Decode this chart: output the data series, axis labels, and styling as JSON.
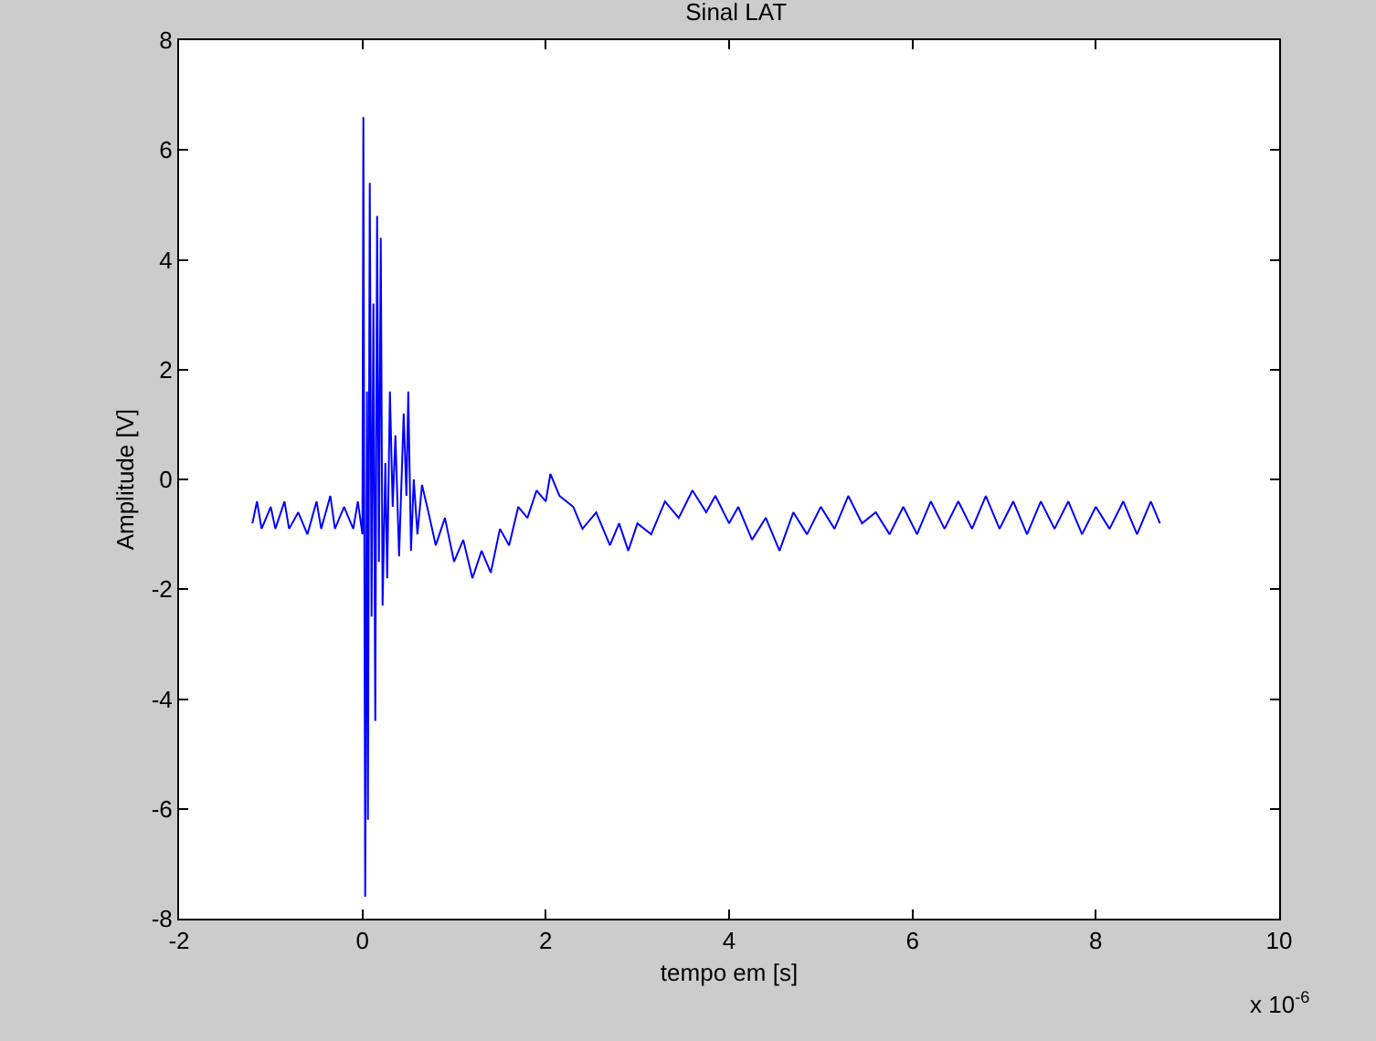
{
  "chart_data": {
    "type": "line",
    "title": "Sinal LAT",
    "xlabel": "tempo em [s]",
    "ylabel": "Amplitude [V]",
    "annotations": [
      "x 10$^{-6}$"
    ],
    "x": [
      -1.2,
      -1.15,
      -1.1,
      -1.0,
      -0.95,
      -0.85,
      -0.8,
      -0.7,
      -0.6,
      -0.5,
      -0.45,
      -0.35,
      -0.3,
      -0.2,
      -0.1,
      -0.05,
      0.0,
      0.01,
      0.03,
      0.05,
      0.06,
      0.08,
      0.1,
      0.12,
      0.14,
      0.16,
      0.18,
      0.2,
      0.22,
      0.25,
      0.27,
      0.3,
      0.33,
      0.36,
      0.4,
      0.45,
      0.48,
      0.5,
      0.53,
      0.56,
      0.6,
      0.65,
      0.72,
      0.8,
      0.9,
      1.0,
      1.1,
      1.2,
      1.3,
      1.4,
      1.5,
      1.6,
      1.7,
      1.8,
      1.9,
      2.0,
      2.05,
      2.15,
      2.3,
      2.4,
      2.55,
      2.7,
      2.8,
      2.9,
      3.0,
      3.15,
      3.3,
      3.45,
      3.6,
      3.75,
      3.85,
      4.0,
      4.1,
      4.25,
      4.4,
      4.55,
      4.7,
      4.85,
      5.0,
      5.15,
      5.3,
      5.45,
      5.6,
      5.75,
      5.9,
      6.05,
      6.2,
      6.35,
      6.5,
      6.65,
      6.8,
      6.95,
      7.1,
      7.25,
      7.4,
      7.55,
      7.7,
      7.85,
      8.0,
      8.15,
      8.3,
      8.45,
      8.6,
      8.7
    ],
    "series": [
      {
        "color": "#0000ff",
        "values": [
          -0.8,
          -0.4,
          -0.9,
          -0.5,
          -0.9,
          -0.4,
          -0.9,
          -0.6,
          -1.0,
          -0.4,
          -0.9,
          -0.3,
          -0.9,
          -0.5,
          -0.9,
          -0.4,
          -1.0,
          6.6,
          -7.6,
          1.6,
          -6.2,
          5.4,
          -2.5,
          3.2,
          -4.4,
          4.8,
          -1.5,
          4.4,
          -2.3,
          0.3,
          -1.8,
          1.6,
          -0.5,
          0.8,
          -1.4,
          1.2,
          -0.3,
          1.6,
          -1.3,
          0.0,
          -1.0,
          -0.1,
          -0.6,
          -1.2,
          -0.7,
          -1.5,
          -1.1,
          -1.8,
          -1.3,
          -1.7,
          -0.9,
          -1.2,
          -0.5,
          -0.7,
          -0.2,
          -0.4,
          0.1,
          -0.3,
          -0.5,
          -0.9,
          -0.6,
          -1.2,
          -0.8,
          -1.3,
          -0.8,
          -1.0,
          -0.4,
          -0.7,
          -0.2,
          -0.6,
          -0.3,
          -0.8,
          -0.5,
          -1.1,
          -0.7,
          -1.3,
          -0.6,
          -1.0,
          -0.5,
          -0.9,
          -0.3,
          -0.8,
          -0.6,
          -1.0,
          -0.5,
          -1.0,
          -0.4,
          -0.9,
          -0.4,
          -0.9,
          -0.3,
          -0.9,
          -0.4,
          -1.0,
          -0.4,
          -0.9,
          -0.4,
          -1.0,
          -0.5,
          -0.9,
          -0.4,
          -1.0,
          -0.4,
          -0.8
        ]
      }
    ],
    "xlim": [
      -2,
      10
    ],
    "xticks": [
      -2,
      0,
      2,
      4,
      6,
      8,
      10
    ],
    "ylim": [
      -8,
      8
    ],
    "yticks": [
      -8,
      -6,
      -4,
      -2,
      0,
      2,
      4,
      6,
      8
    ],
    "grid": false,
    "marker": "none",
    "line_style": "solid"
  }
}
